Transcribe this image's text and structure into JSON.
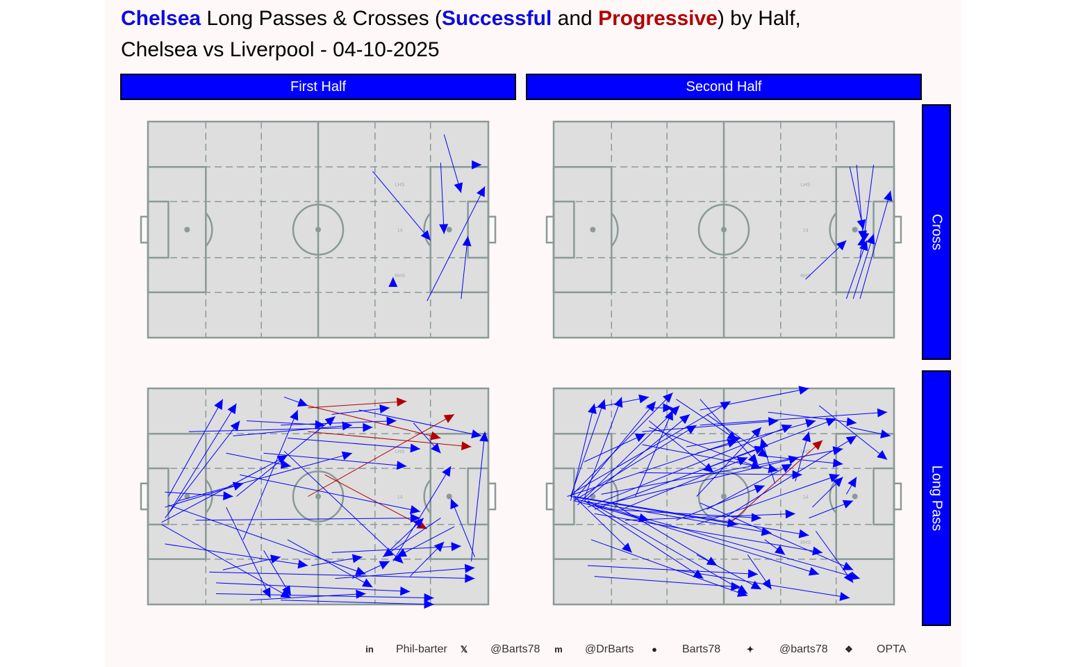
{
  "title": {
    "team": "Chelsea",
    "part1": " Long Passes & Crosses (",
    "successful": "Successful",
    "and": " and ",
    "progressive": "Progressive",
    "part2": ") by Half,",
    "subtitle": "Chelsea vs Liverpool - 04-10-2025"
  },
  "facets": {
    "columns": [
      "First Half",
      "Second Half"
    ],
    "rows": [
      "Cross",
      "Long Pass"
    ]
  },
  "pitch_labels": {
    "lhs": "LHS",
    "center": "14",
    "rhs": "RHS"
  },
  "colors": {
    "successful": "#0000ff",
    "progressive": "#b20000",
    "strip": "#0000ff",
    "pitch": "#dedede",
    "lines": "#8a9a98"
  },
  "footer": {
    "linkedin_icon": "linkedin-icon",
    "linkedin": "Phil-barter",
    "x_icon": "x-icon",
    "x": "@Barts78",
    "mastodon_icon": "mastodon-icon",
    "mastodon": "@DrBarts",
    "github_icon": "github-icon",
    "github": "Barts78",
    "bluesky_icon": "bluesky-icon",
    "bluesky": "@barts78",
    "dropbox_icon": "dropbox-icon",
    "source": "OPTA"
  },
  "chart_data": {
    "type": "pass map",
    "pitch": {
      "xlim": [
        0,
        100
      ],
      "ylim": [
        0,
        100
      ]
    },
    "panels": [
      {
        "half": "First Half",
        "event": "Cross",
        "passes": [
          [
            66,
            77,
            83,
            45,
            "successful"
          ],
          [
            87,
            94,
            92,
            67,
            "successful"
          ],
          [
            86,
            81,
            87,
            48,
            "successful"
          ],
          [
            82,
            17,
            99,
            70,
            "successful"
          ],
          [
            92,
            18,
            94,
            47,
            "successful"
          ],
          [
            97,
            80,
            98,
            80,
            "successful"
          ],
          [
            72,
            27,
            72,
            28,
            "successful"
          ]
        ]
      },
      {
        "half": "Second Half",
        "event": "Cross",
        "passes": [
          [
            87,
            79,
            91,
            50,
            "successful"
          ],
          [
            89,
            80,
            91,
            45,
            "successful"
          ],
          [
            94,
            80,
            91,
            44,
            "successful"
          ],
          [
            86,
            18,
            92,
            45,
            "successful"
          ],
          [
            88,
            18,
            94,
            48,
            "successful"
          ],
          [
            90,
            18,
            99,
            68,
            "successful"
          ],
          [
            74,
            27,
            86,
            45,
            "successful"
          ],
          [
            90,
            37,
            91,
            47,
            "successful"
          ]
        ]
      },
      {
        "half": "First Half",
        "event": "Long Pass",
        "passes": [
          [
            47,
            50,
            90,
            88,
            "progressive"
          ],
          [
            47,
            80,
            95,
            73,
            "progressive"
          ],
          [
            52,
            60,
            82,
            35,
            "progressive"
          ],
          [
            47,
            91,
            76,
            94,
            "progressive"
          ],
          [
            47,
            92,
            86,
            77,
            "progressive"
          ],
          [
            95,
            20,
            99,
            80,
            "successful"
          ],
          [
            6,
            50,
            22,
            95,
            "successful"
          ],
          [
            6,
            42,
            26,
            93,
            "successful"
          ],
          [
            5,
            52,
            25,
            50,
            "successful"
          ],
          [
            5,
            40,
            27,
            85,
            "successful"
          ],
          [
            4,
            38,
            41,
            69,
            "successful"
          ],
          [
            9,
            48,
            60,
            70,
            "successful"
          ],
          [
            6,
            46,
            64,
            14,
            "successful"
          ],
          [
            5,
            45,
            28,
            56,
            "successful"
          ],
          [
            12,
            80,
            66,
            82,
            "successful"
          ],
          [
            29,
            85,
            52,
            83,
            "successful"
          ],
          [
            23,
            70,
            42,
            64,
            "successful"
          ],
          [
            14,
            39,
            80,
            40,
            "successful"
          ],
          [
            25,
            78,
            60,
            83,
            "successful"
          ],
          [
            4,
            37,
            42,
            3,
            "successful"
          ],
          [
            18,
            15,
            96,
            12,
            "successful"
          ],
          [
            39,
            83,
            73,
            85,
            "successful"
          ],
          [
            41,
            77,
            80,
            72,
            "successful"
          ],
          [
            40,
            71,
            75,
            19,
            "successful"
          ],
          [
            78,
            84,
            86,
            70,
            "successful"
          ],
          [
            40,
            96,
            47,
            92,
            "successful"
          ],
          [
            54,
            88,
            71,
            91,
            "successful"
          ],
          [
            26,
            50,
            55,
            87,
            "successful"
          ],
          [
            34,
            25,
            42,
            4,
            "successful"
          ],
          [
            23,
            45,
            36,
            3,
            "successful"
          ],
          [
            48,
            18,
            63,
            22,
            "successful"
          ],
          [
            20,
            10,
            77,
            6,
            "successful"
          ],
          [
            5,
            28,
            47,
            18,
            "successful"
          ],
          [
            22,
            16,
            39,
            22,
            "successful"
          ],
          [
            55,
            12,
            96,
            17,
            "successful"
          ],
          [
            20,
            5,
            84,
            3,
            "successful"
          ],
          [
            30,
            2,
            64,
            5,
            "successful"
          ],
          [
            39,
            2,
            84,
            0,
            "successful"
          ],
          [
            54,
            24,
            92,
            27,
            "successful"
          ],
          [
            60,
            12,
            71,
            20,
            "successful"
          ],
          [
            71,
            25,
            81,
            40,
            "successful"
          ],
          [
            41,
            30,
            66,
            8,
            "successful"
          ],
          [
            72,
            20,
            89,
            64,
            "successful"
          ],
          [
            77,
            13,
            87,
            29,
            "successful"
          ],
          [
            96,
            22,
            89,
            49,
            "successful"
          ],
          [
            90,
            36,
            73,
            22,
            "successful"
          ],
          [
            86,
            40,
            69,
            22,
            "successful"
          ],
          [
            28,
            30,
            44,
            90,
            "successful"
          ],
          [
            62,
            90,
            98,
            78,
            "successful"
          ],
          [
            34,
            70,
            76,
            64,
            "successful"
          ],
          [
            27,
            60,
            80,
            43,
            "successful"
          ]
        ]
      },
      {
        "half": "Second Half",
        "event": "Long Pass",
        "passes": [
          [
            52,
            38,
            79,
            76,
            "progressive"
          ],
          [
            5,
            50,
            15,
            95,
            "successful"
          ],
          [
            7,
            50,
            30,
            94,
            "successful"
          ],
          [
            6,
            52,
            52,
            94,
            "successful"
          ],
          [
            5,
            50,
            35,
            98,
            "successful"
          ],
          [
            9,
            48,
            40,
            88,
            "successful"
          ],
          [
            6,
            48,
            42,
            83,
            "successful"
          ],
          [
            7,
            46,
            37,
            92,
            "successful"
          ],
          [
            10,
            45,
            70,
            83,
            "successful"
          ],
          [
            12,
            44,
            62,
            73,
            "successful"
          ],
          [
            14,
            46,
            72,
            68,
            "successful"
          ],
          [
            20,
            44,
            57,
            68,
            "successful"
          ],
          [
            5,
            50,
            54,
            37,
            "successful"
          ],
          [
            6,
            50,
            75,
            32,
            "successful"
          ],
          [
            8,
            48,
            64,
            33,
            "successful"
          ],
          [
            9,
            48,
            44,
            12,
            "successful"
          ],
          [
            10,
            48,
            57,
            5,
            "successful"
          ],
          [
            6,
            49,
            90,
            12,
            "successful"
          ],
          [
            12,
            46,
            78,
            14,
            "successful"
          ],
          [
            12,
            42,
            79,
            24,
            "successful"
          ],
          [
            16,
            44,
            61,
            40,
            "successful"
          ],
          [
            6,
            50,
            23,
            24,
            "successful"
          ],
          [
            6,
            48,
            28,
            39,
            "successful"
          ],
          [
            17,
            47,
            48,
            18,
            "successful"
          ],
          [
            11,
            30,
            57,
            4,
            "successful"
          ],
          [
            10,
            18,
            60,
            14,
            "successful"
          ],
          [
            12,
            13,
            55,
            8,
            "successful"
          ],
          [
            36,
            16,
            87,
            3,
            "successful"
          ],
          [
            42,
            23,
            61,
            7,
            "successful"
          ],
          [
            43,
            47,
            88,
            16,
            "successful"
          ],
          [
            57,
            23,
            64,
            7,
            "successful"
          ],
          [
            62,
            30,
            68,
            23,
            "successful"
          ],
          [
            77,
            34,
            88,
            10,
            "successful"
          ],
          [
            65,
            56,
            61,
            77,
            "successful"
          ],
          [
            42,
            37,
            84,
            60,
            "successful"
          ],
          [
            24,
            50,
            35,
            90,
            "successful"
          ],
          [
            36,
            39,
            62,
            55,
            "successful"
          ],
          [
            50,
            40,
            89,
            78,
            "successful"
          ],
          [
            71,
            57,
            75,
            80,
            "successful"
          ],
          [
            42,
            70,
            77,
            85,
            "successful"
          ],
          [
            26,
            74,
            66,
            62,
            "successful"
          ],
          [
            25,
            61,
            73,
            60,
            "successful"
          ],
          [
            43,
            95,
            60,
            65,
            "successful"
          ],
          [
            45,
            88,
            63,
            68,
            "successful"
          ],
          [
            36,
            95,
            54,
            76,
            "successful"
          ],
          [
            28,
            85,
            47,
            61,
            "successful"
          ],
          [
            21,
            39,
            71,
            42,
            "successful"
          ],
          [
            27,
            91,
            35,
            91,
            "successful"
          ],
          [
            75,
            40,
            88,
            48,
            "successful"
          ],
          [
            76,
            45,
            85,
            59,
            "successful"
          ],
          [
            86,
            51,
            89,
            59,
            "successful"
          ],
          [
            43,
            62,
            83,
            86,
            "successful"
          ],
          [
            28,
            82,
            61,
            63,
            "successful"
          ],
          [
            5,
            48,
            12,
            93,
            "successful"
          ],
          [
            14,
            51,
            85,
            72,
            "successful"
          ],
          [
            4,
            50,
            54,
            76,
            "successful"
          ],
          [
            9,
            49,
            20,
            96,
            "successful"
          ],
          [
            26,
            80,
            66,
            85,
            "successful"
          ],
          [
            43,
            90,
            75,
            100,
            "successful"
          ],
          [
            63,
            89,
            89,
            84,
            "successful"
          ],
          [
            43,
            83,
            98,
            89,
            "successful"
          ],
          [
            78,
            92,
            98,
            67,
            "successful"
          ],
          [
            42,
            50,
            61,
            82,
            "successful"
          ],
          [
            45,
            44,
            70,
            65,
            "successful"
          ],
          [
            39,
            73,
            55,
            77,
            "successful"
          ],
          [
            9,
            66,
            27,
            79,
            "successful"
          ],
          [
            60,
            69,
            85,
            65,
            "successful"
          ],
          [
            87,
            82,
            99,
            78,
            "successful"
          ],
          [
            12,
            91,
            28,
            96,
            "successful"
          ]
        ]
      }
    ]
  }
}
